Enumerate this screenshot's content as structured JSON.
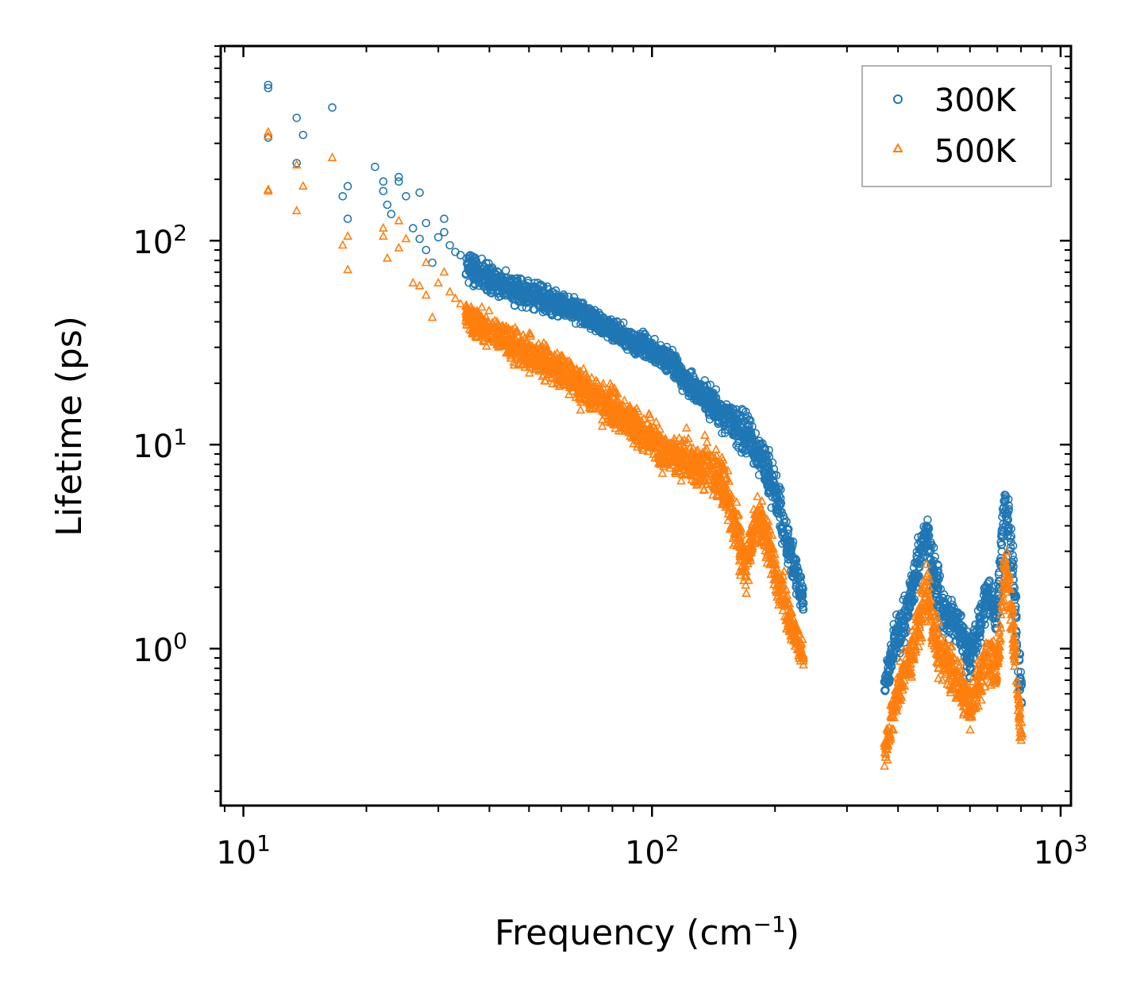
{
  "chart_data": {
    "type": "scatter",
    "xscale": "log",
    "yscale": "log",
    "xlabel": "Frequency (cm",
    "xlabel_superscript": "−1",
    "xlabel_suffix": ")",
    "ylabel": "Lifetime (ps)",
    "xlim": [
      8.8,
      1060
    ],
    "ylim": [
      0.17,
      900
    ],
    "legend_position": "top-right",
    "x_ticks": [
      {
        "value": 10,
        "base": "10",
        "exp": "1"
      },
      {
        "value": 100,
        "base": "10",
        "exp": "2"
      },
      {
        "value": 1000,
        "base": "10",
        "exp": "3"
      }
    ],
    "y_ticks": [
      {
        "value": 1,
        "base": "10",
        "exp": "0"
      },
      {
        "value": 10,
        "base": "10",
        "exp": "1"
      },
      {
        "value": 100,
        "base": "10",
        "exp": "2"
      }
    ],
    "series": [
      {
        "name": "300K",
        "marker": "circle-open",
        "color": "#1f77b4",
        "points": [
          [
            11.5,
            580
          ],
          [
            11.5,
            560
          ],
          [
            11.5,
            320
          ],
          [
            13.5,
            400
          ],
          [
            13.5,
            240
          ],
          [
            14,
            330
          ],
          [
            16.5,
            450
          ],
          [
            17.5,
            165
          ],
          [
            18,
            185
          ],
          [
            18,
            128
          ],
          [
            21,
            230
          ],
          [
            22,
            195
          ],
          [
            22,
            175
          ],
          [
            22.5,
            150
          ],
          [
            23,
            135
          ],
          [
            24,
            205
          ],
          [
            24,
            195
          ],
          [
            25,
            165
          ],
          [
            26,
            115
          ],
          [
            27,
            172
          ],
          [
            27,
            102
          ],
          [
            28,
            122
          ],
          [
            28,
            90
          ],
          [
            29,
            78
          ],
          [
            30,
            104
          ],
          [
            31,
            128
          ],
          [
            31,
            110
          ],
          [
            32,
            95
          ],
          [
            33,
            88
          ],
          [
            34,
            85
          ]
        ],
        "cloud": [
          [
            35,
            75,
            1.25
          ],
          [
            42,
            62,
            1.25
          ],
          [
            50,
            55,
            1.25
          ],
          [
            60,
            48,
            1.2
          ],
          [
            70,
            42,
            1.2
          ],
          [
            80,
            36,
            1.2
          ],
          [
            90,
            32,
            1.2
          ],
          [
            100,
            29,
            1.22
          ],
          [
            110,
            26,
            1.25
          ],
          [
            120,
            21,
            1.25
          ],
          [
            130,
            18,
            1.25
          ],
          [
            140,
            16,
            1.3
          ],
          [
            150,
            14,
            1.3
          ],
          [
            160,
            12.5,
            1.35
          ],
          [
            170,
            11,
            1.4
          ],
          [
            180,
            9.5,
            1.4
          ],
          [
            190,
            8,
            1.4
          ],
          [
            200,
            6,
            1.45
          ],
          [
            210,
            4,
            1.45
          ],
          [
            220,
            2.8,
            1.4
          ],
          [
            230,
            2,
            1.3
          ],
          [
            235,
            1.7,
            1.25
          ],
          [
            370,
            0.6,
            1.35
          ],
          [
            390,
            1.0,
            1.4
          ],
          [
            410,
            1.3,
            1.4
          ],
          [
            430,
            1.8,
            1.4
          ],
          [
            450,
            2.7,
            1.45
          ],
          [
            470,
            3.8,
            1.35
          ],
          [
            490,
            2.3,
            1.45
          ],
          [
            520,
            1.5,
            1.45
          ],
          [
            560,
            1.3,
            1.4
          ],
          [
            600,
            0.9,
            1.4
          ],
          [
            660,
            1.8,
            1.45
          ],
          [
            700,
            1.5,
            1.4
          ],
          [
            730,
            5.5,
            1.6
          ],
          [
            760,
            3.0,
            1.6
          ],
          [
            790,
            0.8,
            1.5
          ],
          [
            805,
            0.6,
            1.2
          ]
        ]
      },
      {
        "name": "500K",
        "marker": "triangle-open",
        "color": "#ff7f0e",
        "points": [
          [
            11.5,
            340
          ],
          [
            11.5,
            325
          ],
          [
            11.5,
            178
          ],
          [
            11.5,
            175
          ],
          [
            13.5,
            235
          ],
          [
            13.5,
            140
          ],
          [
            14,
            185
          ],
          [
            16.5,
            255
          ],
          [
            17.5,
            95
          ],
          [
            18,
            105
          ],
          [
            18,
            72
          ],
          [
            22,
            115
          ],
          [
            22,
            105
          ],
          [
            22.5,
            82
          ],
          [
            24,
            125
          ],
          [
            24,
            92
          ],
          [
            25,
            102
          ],
          [
            26,
            62
          ],
          [
            27,
            60
          ],
          [
            28,
            78
          ],
          [
            28,
            54
          ],
          [
            29,
            42
          ],
          [
            30,
            62
          ],
          [
            31,
            70
          ],
          [
            32,
            56
          ],
          [
            33,
            52
          ],
          [
            34,
            49
          ]
        ],
        "cloud": [
          [
            35,
            42,
            1.3
          ],
          [
            42,
            34,
            1.3
          ],
          [
            50,
            28,
            1.3
          ],
          [
            60,
            23,
            1.3
          ],
          [
            70,
            18,
            1.35
          ],
          [
            80,
            15,
            1.35
          ],
          [
            90,
            12.5,
            1.35
          ],
          [
            100,
            10.5,
            1.4
          ],
          [
            110,
            9,
            1.4
          ],
          [
            120,
            8.5,
            1.45
          ],
          [
            130,
            8,
            1.45
          ],
          [
            140,
            7.5,
            1.45
          ],
          [
            150,
            6.5,
            1.5
          ],
          [
            160,
            4,
            1.6
          ],
          [
            170,
            2.5,
            1.5
          ],
          [
            180,
            4.5,
            1.45
          ],
          [
            190,
            3.5,
            1.45
          ],
          [
            200,
            2.5,
            1.45
          ],
          [
            210,
            1.8,
            1.4
          ],
          [
            220,
            1.3,
            1.35
          ],
          [
            230,
            1.0,
            1.3
          ],
          [
            235,
            0.9,
            1.25
          ],
          [
            370,
            0.3,
            1.3
          ],
          [
            390,
            0.5,
            1.4
          ],
          [
            410,
            0.7,
            1.4
          ],
          [
            430,
            0.9,
            1.4
          ],
          [
            450,
            1.3,
            1.5
          ],
          [
            470,
            2.0,
            1.5
          ],
          [
            490,
            1.1,
            1.5
          ],
          [
            520,
            0.9,
            1.45
          ],
          [
            560,
            0.7,
            1.45
          ],
          [
            600,
            0.5,
            1.4
          ],
          [
            660,
            0.9,
            1.45
          ],
          [
            700,
            0.8,
            1.45
          ],
          [
            730,
            2.5,
            1.6
          ],
          [
            760,
            1.5,
            1.6
          ],
          [
            790,
            0.5,
            1.5
          ],
          [
            805,
            0.38,
            1.3
          ]
        ]
      }
    ]
  }
}
